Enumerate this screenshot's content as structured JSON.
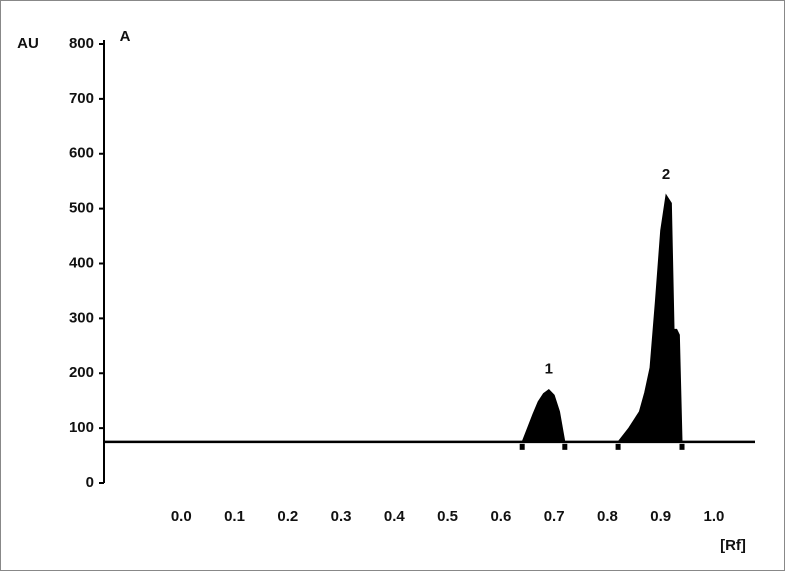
{
  "chart_data": {
    "type": "line",
    "y_label": "AU",
    "panel_label": "A",
    "x_label": "[Rf]",
    "xlim": [
      -0.145,
      1.077
    ],
    "ylim": [
      0,
      800
    ],
    "yticks": [
      0,
      100,
      200,
      300,
      400,
      500,
      600,
      700,
      800
    ],
    "xticks": [
      {
        "value": 0,
        "label": "0.0"
      },
      0.1,
      0.2,
      0.3,
      0.4,
      0.5,
      0.6,
      0.7,
      0.8,
      0.9,
      {
        "value": 1,
        "label": "1.0"
      }
    ],
    "baseline": 75,
    "integration_marks": [
      0.64,
      0.72,
      0.82,
      0.94
    ],
    "color": "#000000",
    "x": [
      0.64,
      0.65,
      0.66,
      0.67,
      0.68,
      0.69,
      0.7,
      0.71,
      0.72,
      0.78,
      0.82,
      0.84,
      0.86,
      0.87,
      0.88,
      0.89,
      0.9,
      0.91,
      0.92,
      0.925,
      0.93,
      0.935,
      0.94
    ],
    "values": [
      75,
      100,
      125,
      148,
      163,
      170,
      160,
      130,
      75,
      null,
      75,
      100,
      130,
      165,
      210,
      330,
      460,
      525,
      510,
      280,
      280,
      270,
      75
    ],
    "annotations": [
      {
        "text": "1",
        "x": 0.69,
        "y": 170
      },
      {
        "text": "2",
        "x": 0.91,
        "y": 525
      }
    ]
  }
}
